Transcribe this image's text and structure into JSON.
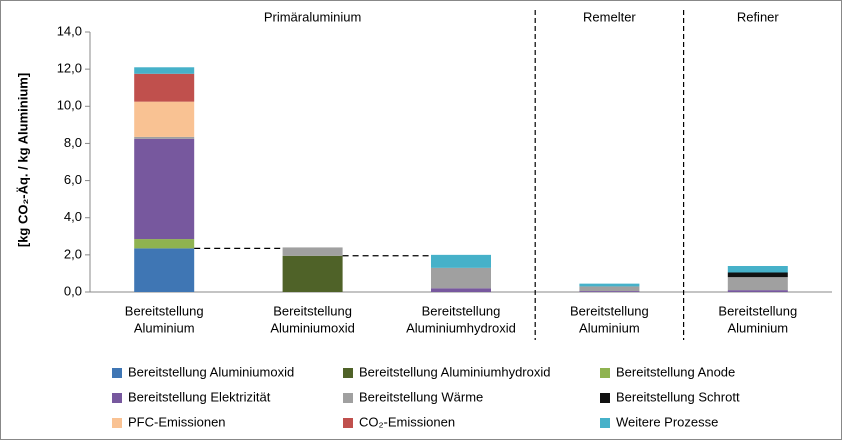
{
  "chart_data": {
    "type": "stacked_bar",
    "y_label": "[kg CO₂-Äq. / kg Aluminium]",
    "groups": [
      "Primäraluminium",
      "Remelter",
      "Refiner"
    ],
    "categories": [
      [
        "Bereitstellung",
        "Aluminium"
      ],
      [
        "Bereitstellung",
        "Aluminiumoxid"
      ],
      [
        "Bereitstellung",
        "Aluminiumhydroxid"
      ],
      [
        "Bereitstellung",
        "Aluminium"
      ],
      [
        "Bereitstellung",
        "Aluminium"
      ]
    ],
    "series": [
      {
        "name": "Bereitstellung Aluminiumoxid",
        "color": "#3f76b4",
        "values": [
          2.35,
          0,
          0,
          0,
          0
        ]
      },
      {
        "name": "Bereitstellung Aluminiumhydroxid",
        "color": "#4f6228",
        "values": [
          0,
          1.95,
          0,
          0,
          0
        ]
      },
      {
        "name": "Bereitstellung Anode",
        "color": "#8fb350",
        "values": [
          0.5,
          0,
          0,
          0,
          0
        ]
      },
      {
        "name": "Bereitstellung Elektrizität",
        "color": "#77589e",
        "values": [
          5.4,
          0,
          0.2,
          0.05,
          0.1
        ]
      },
      {
        "name": "Bereitstellung Wärme",
        "color": "#a0a0a0",
        "values": [
          0.1,
          0.45,
          1.1,
          0.25,
          0.7
        ]
      },
      {
        "name": "Bereitstellung Schrott",
        "color": "#111111",
        "values": [
          0,
          0,
          0,
          0,
          0.25
        ]
      },
      {
        "name": "PFC-Emissionen",
        "color": "#f9c293",
        "values": [
          1.9,
          0,
          0,
          0,
          0
        ]
      },
      {
        "name": "CO₂-Emissionen",
        "color": "#c0504d",
        "values": [
          1.5,
          0,
          0,
          0,
          0
        ]
      },
      {
        "name": "Weitere Prozesse",
        "color": "#46b1c9",
        "values": [
          0.35,
          0,
          0.7,
          0.15,
          0.35
        ]
      }
    ],
    "ylim": [
      0,
      14
    ],
    "yticks": [
      {
        "value": 0,
        "label": "0,0"
      },
      {
        "value": 2,
        "label": "2,0"
      },
      {
        "value": 4,
        "label": "4,0"
      },
      {
        "value": 6,
        "label": "6,0"
      },
      {
        "value": 8,
        "label": "8,0"
      },
      {
        "value": 10,
        "label": "10,0"
      },
      {
        "value": 12,
        "label": "12,0"
      },
      {
        "value": 14,
        "label": "14,0"
      }
    ],
    "legend": "bottom"
  }
}
